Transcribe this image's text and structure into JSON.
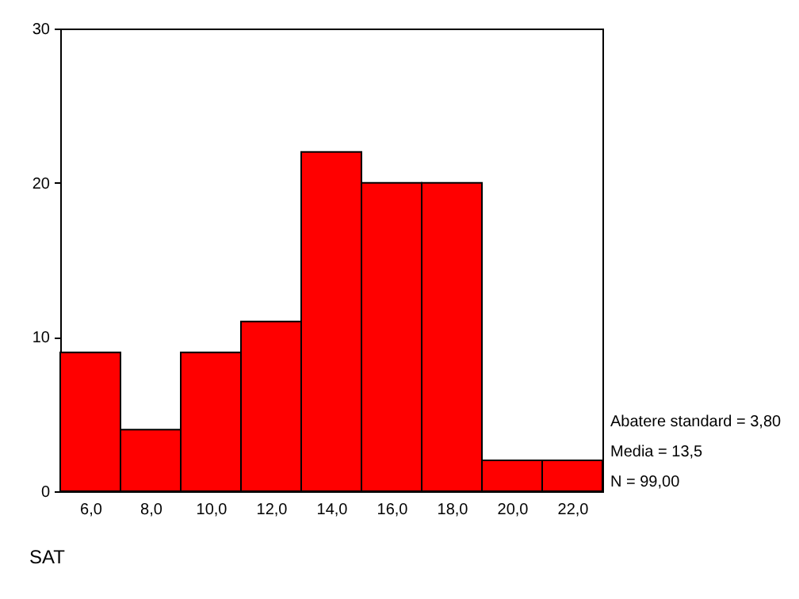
{
  "chart_data": {
    "type": "histogram",
    "xlabel": "SAT",
    "bins": [
      5,
      7,
      9,
      11,
      13,
      15,
      17,
      19,
      21,
      23
    ],
    "values": [
      9,
      4,
      9,
      11,
      22,
      20,
      20,
      2,
      2
    ],
    "color": "#ff0000",
    "xlim": [
      5,
      23
    ],
    "xticks": [
      {
        "value": 6,
        "label": "6,0"
      },
      {
        "value": 8,
        "label": "8,0"
      },
      {
        "value": 10,
        "label": "10,0"
      },
      {
        "value": 12,
        "label": "12,0"
      },
      {
        "value": 14,
        "label": "14,0"
      },
      {
        "value": 16,
        "label": "16,0"
      },
      {
        "value": 18,
        "label": "18,0"
      },
      {
        "value": 20,
        "label": "20,0"
      },
      {
        "value": 22,
        "label": "22,0"
      }
    ],
    "ylim": [
      0,
      30
    ],
    "yticks": [
      0,
      10,
      20,
      30
    ],
    "grid": false,
    "annotations": [
      "Abatere standard = 3,80",
      "Media = 13,5",
      "N = 99,00"
    ]
  }
}
